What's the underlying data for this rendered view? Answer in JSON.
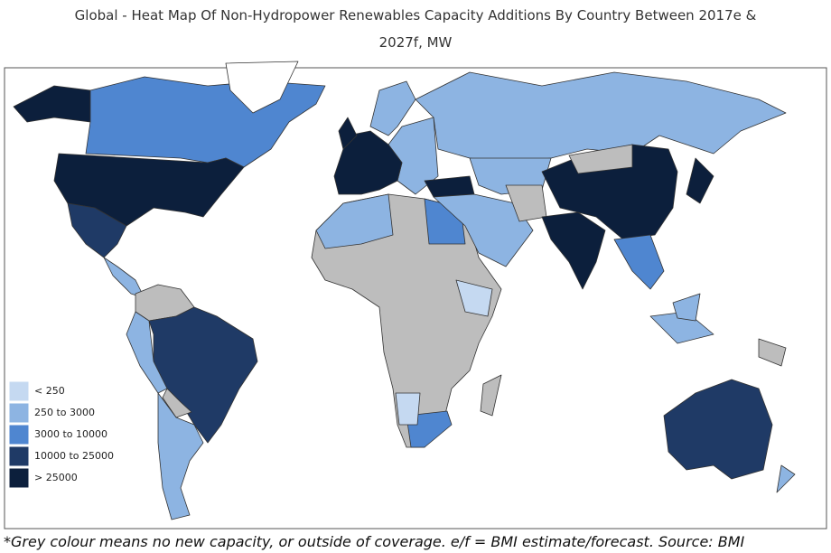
{
  "title_line1": "Global - Heat Map Of Non-Hydropower Renewables Capacity Additions By Country Between 2017e &",
  "title_line2": "2027f, MW",
  "legend": [
    {
      "label": "< 250",
      "color": "#c5d9f1"
    },
    {
      "label": "250 to 3000",
      "color": "#8db4e2"
    },
    {
      "label": "3000 to 10000",
      "color": "#4f86d0"
    },
    {
      "label": "10000 to 25000",
      "color": "#1f3a66"
    },
    {
      "label": "> 25000",
      "color": "#0c1f3c"
    }
  ],
  "footnote": "*Grey colour means no new capacity, or outside of coverage. e/f = BMI estimate/forecast. Source: BMI"
}
